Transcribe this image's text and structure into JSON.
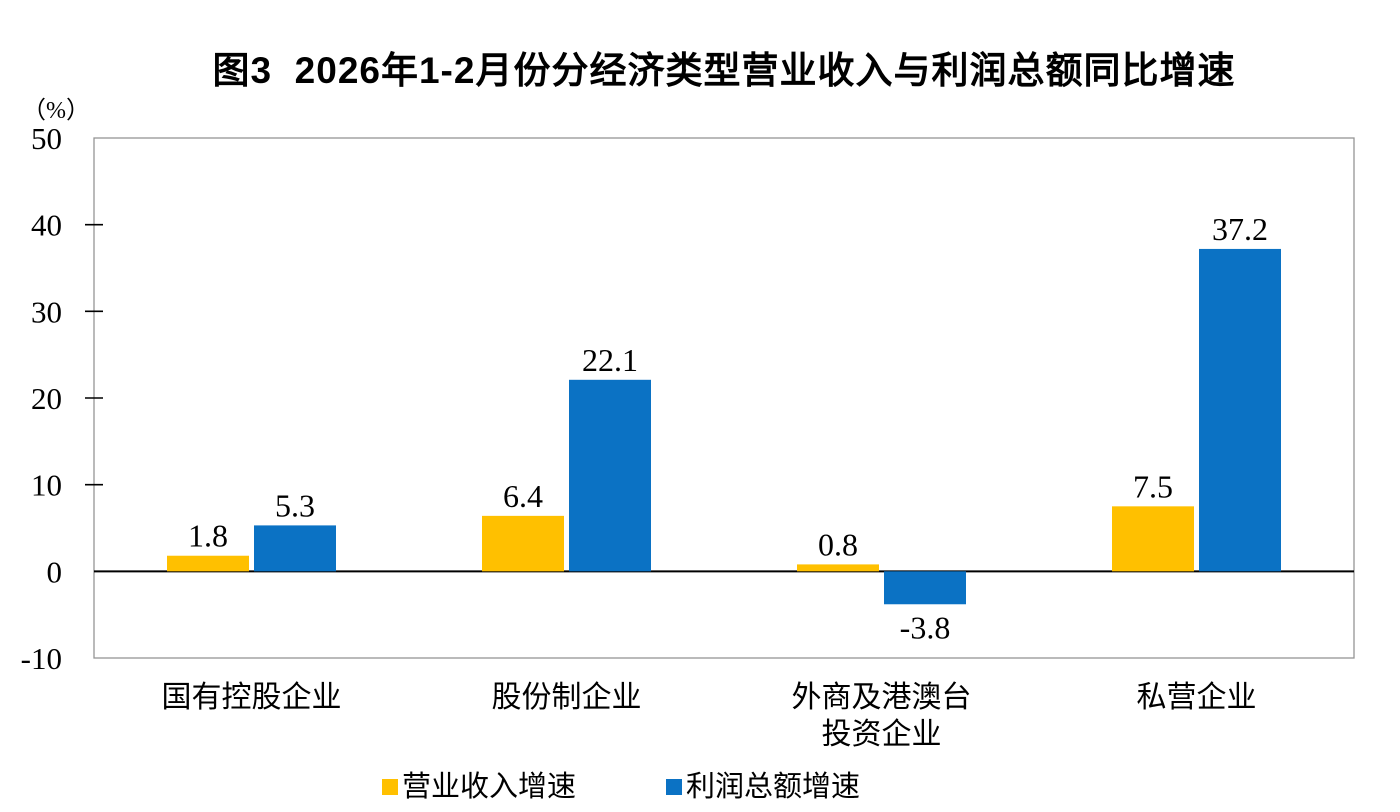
{
  "chart_data": {
    "type": "bar",
    "title": "图3  2026年1-2月份分经济类型营业收入与利润总额同比增速",
    "unit_label": "（%）",
    "categories": [
      "国有控股企业",
      "股份制企业",
      "外商及港澳台\n投资企业",
      "私营企业"
    ],
    "series": [
      {
        "name": "营业收入增速",
        "color": "#FFC000",
        "values": [
          1.8,
          6.4,
          0.8,
          7.5
        ]
      },
      {
        "name": "利润总额增速",
        "color": "#0B72C4",
        "values": [
          5.3,
          22.1,
          -3.8,
          37.2
        ]
      }
    ],
    "value_label_format": "one-decimal",
    "ylim": [
      -10,
      50
    ],
    "ytick_step": 10,
    "ytick_labels": [
      "50",
      "40",
      "30",
      "20",
      "10",
      "0",
      "-10"
    ],
    "grid": false,
    "legend_position": "bottom",
    "frame_color": "#949494",
    "axis_color": "#000000",
    "text_color": "#000000",
    "background": "#FFFFFF"
  }
}
